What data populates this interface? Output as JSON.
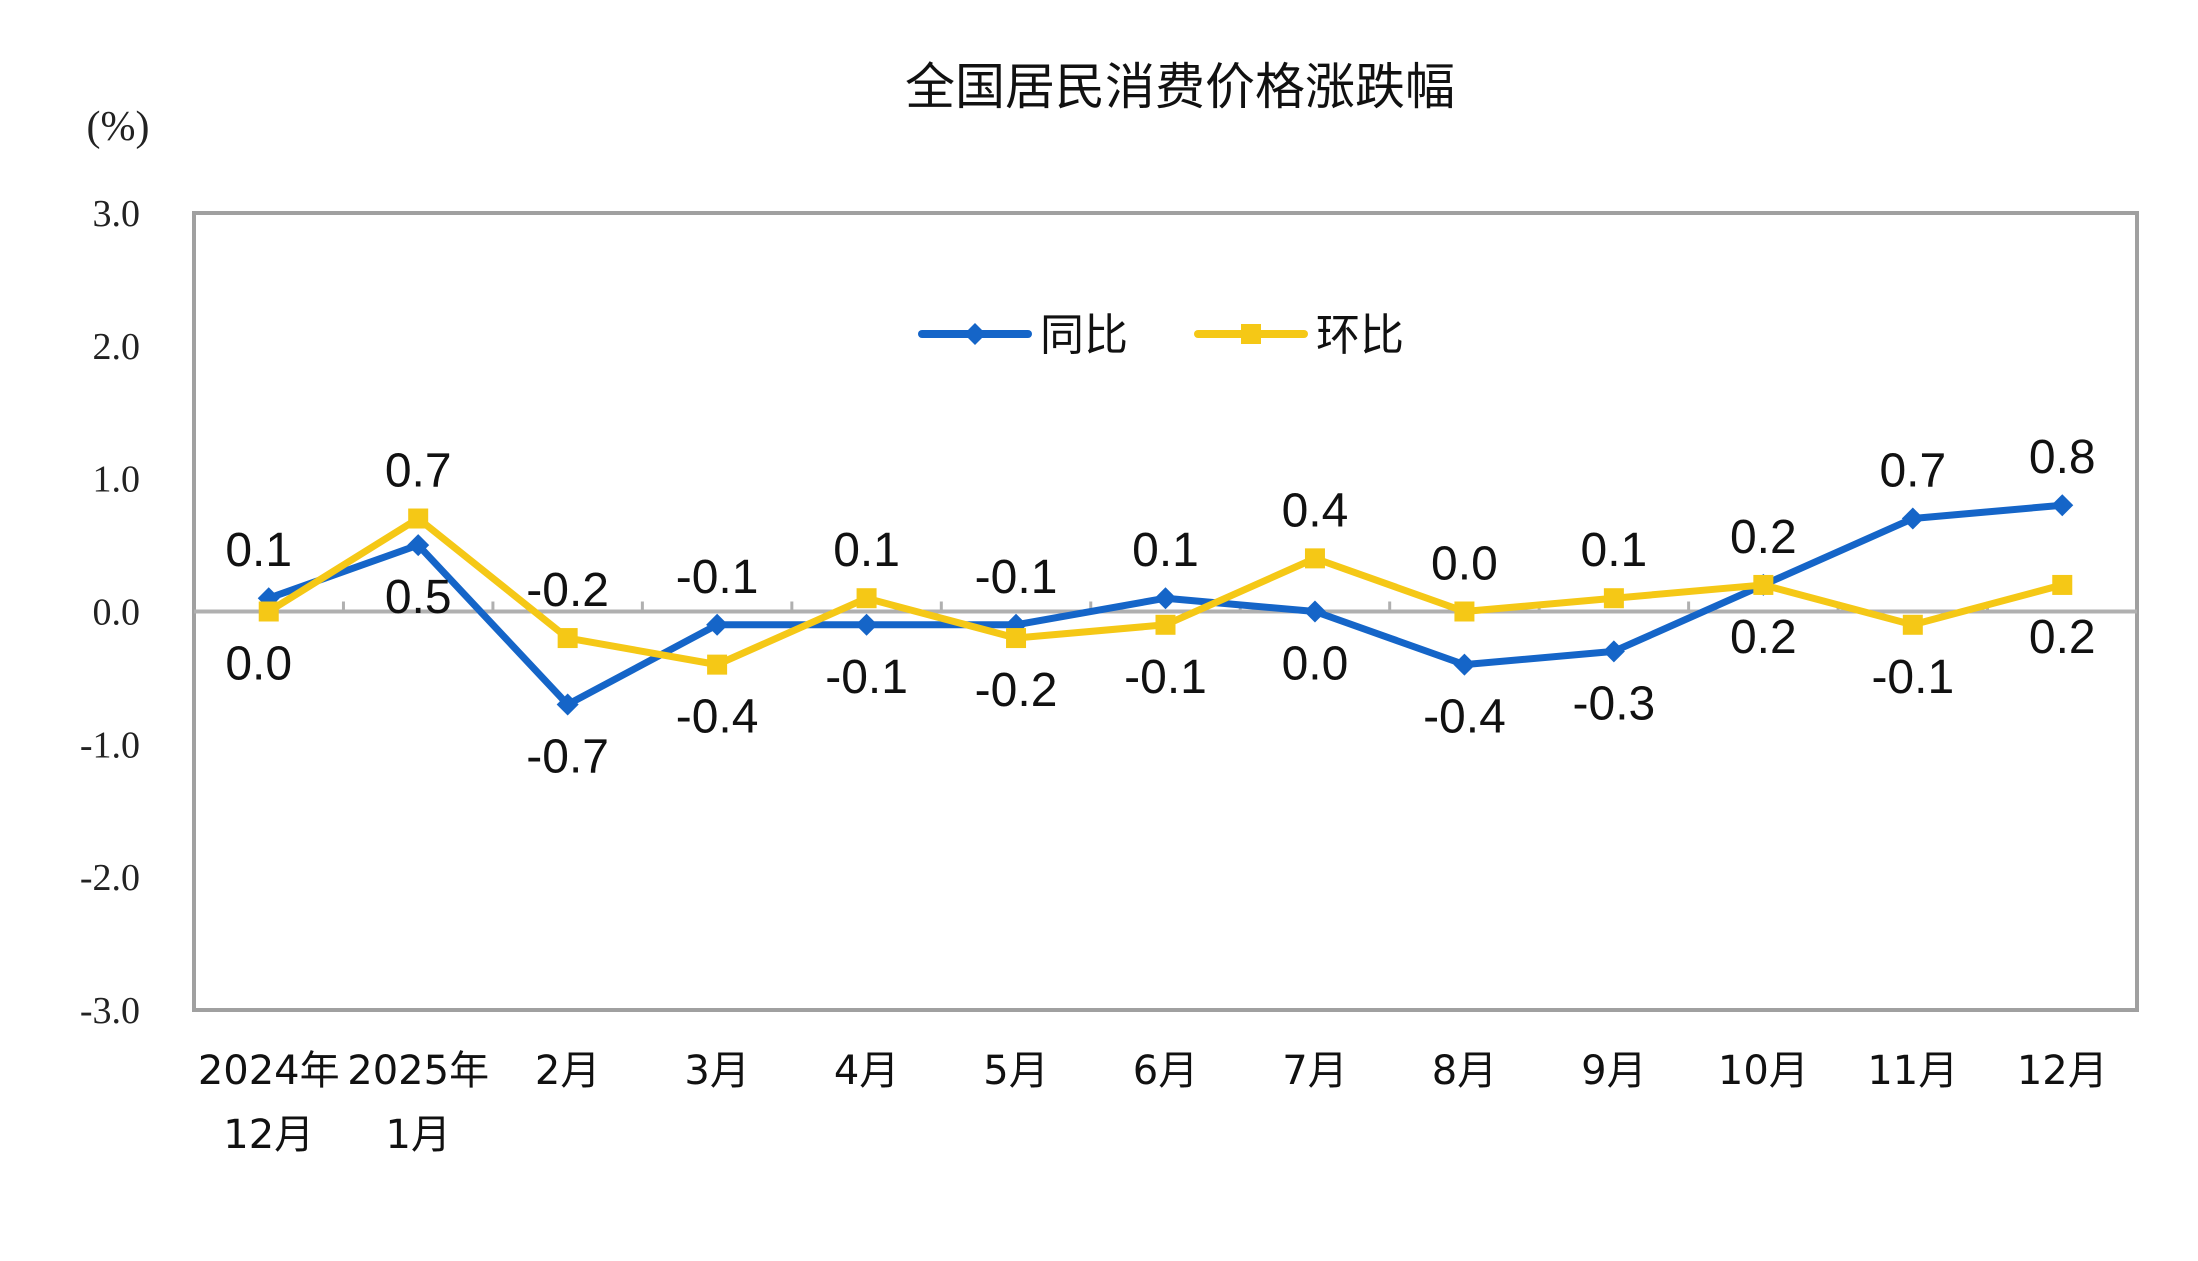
{
  "chart_data": {
    "type": "line",
    "title": "全国居民消费价格涨跌幅",
    "ylabel": "(%)",
    "ylim": [
      -3.0,
      3.0
    ],
    "yticks": [
      "3.0",
      "2.0",
      "1.0",
      "0.0",
      "-1.0",
      "-2.0",
      "-3.0"
    ],
    "grid": false,
    "legend_placement": "top-center",
    "categories": [
      [
        "2024年",
        "12月"
      ],
      [
        "2025年",
        "1月"
      ],
      [
        "2月"
      ],
      [
        "3月"
      ],
      [
        "4月"
      ],
      [
        "5月"
      ],
      [
        "6月"
      ],
      [
        "7月"
      ],
      [
        "8月"
      ],
      [
        "9月"
      ],
      [
        "10月"
      ],
      [
        "11月"
      ],
      [
        "12月"
      ]
    ],
    "series": [
      {
        "name": "同比",
        "color": "#1565C8",
        "marker": "diamond",
        "values": [
          0.1,
          0.5,
          -0.7,
          -0.1,
          -0.1,
          -0.1,
          0.1,
          0.0,
          -0.4,
          -0.3,
          0.2,
          0.7,
          0.8
        ],
        "labels": [
          "0.1",
          "0.5",
          "-0.7",
          "-0.1",
          "-0.1",
          "-0.1",
          "0.1",
          "0.0",
          "-0.4",
          "-0.3",
          "0.2",
          "0.7",
          "0.8"
        ],
        "label_positions": [
          "above",
          "below",
          "below",
          "above",
          "below",
          "above",
          "above",
          "below",
          "below",
          "below",
          "above",
          "above",
          "above"
        ]
      },
      {
        "name": "环比",
        "color": "#F5C816",
        "marker": "square",
        "values": [
          0.0,
          0.7,
          -0.2,
          -0.4,
          0.1,
          -0.2,
          -0.1,
          0.4,
          0.0,
          0.1,
          0.2,
          -0.1,
          0.2
        ],
        "labels": [
          "0.0",
          "0.7",
          "-0.2",
          "-0.4",
          "0.1",
          "-0.2",
          "-0.1",
          "0.4",
          "0.0",
          "0.1",
          "0.2",
          "-0.1",
          "0.2"
        ],
        "label_positions": [
          "below",
          "above",
          "above",
          "below",
          "above",
          "below",
          "below",
          "above",
          "above",
          "above",
          "below",
          "below",
          "below"
        ]
      }
    ]
  }
}
